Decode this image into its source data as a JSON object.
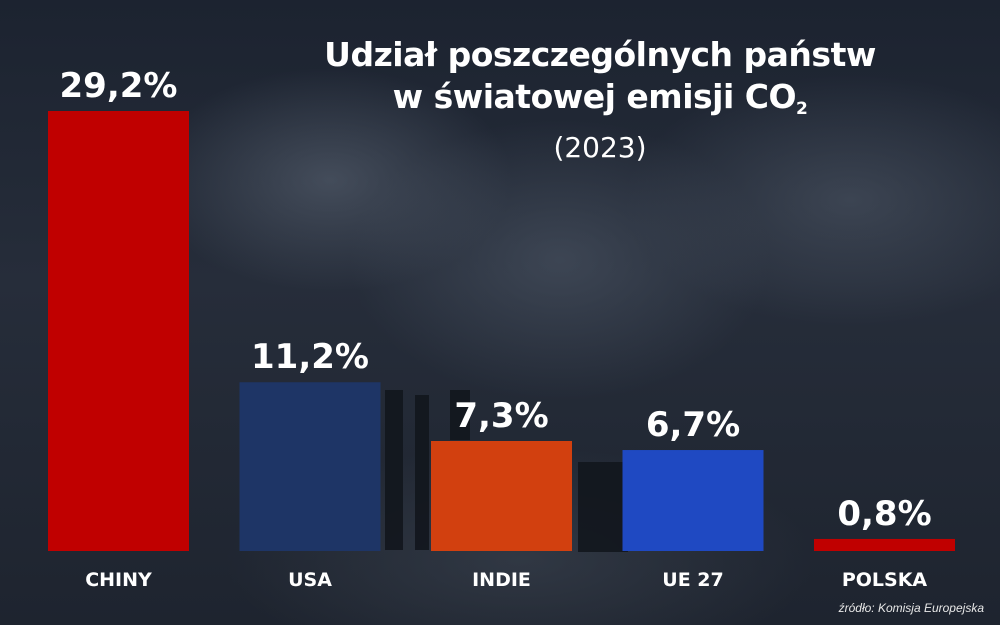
{
  "title": {
    "line1": "Udział poszczególnych państw",
    "line2_main": "w światowej emisji CO",
    "line2_sub": "2",
    "subtitle": "(2023)"
  },
  "source": "źródło: Komisja Europejska",
  "chart_data": {
    "type": "bar",
    "categories": [
      "CHINY",
      "USA",
      "INDIE",
      "UE 27",
      "POLSKA"
    ],
    "values": [
      29.2,
      11.2,
      7.3,
      6.7,
      0.8
    ],
    "value_labels": [
      "29,2%",
      "11,2%",
      "7,3%",
      "6,7%",
      "0,8%"
    ],
    "colors": [
      "#c00000",
      "#1e3566",
      "#d2400f",
      "#1f49c2",
      "#c00000"
    ],
    "unit": "%",
    "ylim": [
      0,
      29.2
    ],
    "grid": false,
    "legend": "none",
    "title": "Udział poszczególnych państw w światowej emisji CO2 (2023)",
    "xlabel": "",
    "ylabel": ""
  }
}
